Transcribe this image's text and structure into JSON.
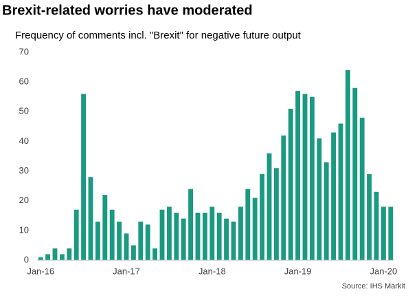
{
  "chart_data": {
    "type": "bar",
    "title": "Brexit-related worries have moderated",
    "subtitle": "Frequency of comments incl. \"Brexit\" for negative future output",
    "source": "Source: IHS Markit",
    "categories": [
      "Jan-16",
      null,
      null,
      null,
      null,
      null,
      null,
      null,
      null,
      null,
      null,
      null,
      "Jan-17",
      null,
      null,
      null,
      null,
      null,
      null,
      null,
      null,
      null,
      null,
      null,
      "Jan-18",
      null,
      null,
      null,
      null,
      null,
      null,
      null,
      null,
      null,
      null,
      null,
      "Jan-19",
      null,
      null,
      null,
      null,
      null,
      null,
      null,
      null,
      null,
      null,
      null,
      "Jan-20",
      null
    ],
    "values": [
      1,
      2,
      4,
      2,
      4,
      17,
      56,
      28,
      13,
      22,
      17,
      13,
      9,
      5,
      13,
      12,
      4,
      17,
      18,
      16,
      14,
      24,
      16,
      16,
      18,
      16,
      14,
      13,
      18,
      24,
      21,
      29,
      36,
      31,
      42,
      51,
      57,
      56,
      55,
      41,
      33,
      43,
      46,
      64,
      58,
      48,
      29,
      23,
      18,
      18
    ],
    "color": "#1a9a80",
    "ylim": [
      0,
      70
    ],
    "yticks": [
      0,
      10,
      20,
      30,
      40,
      50,
      60,
      70
    ],
    "grid": false
  }
}
